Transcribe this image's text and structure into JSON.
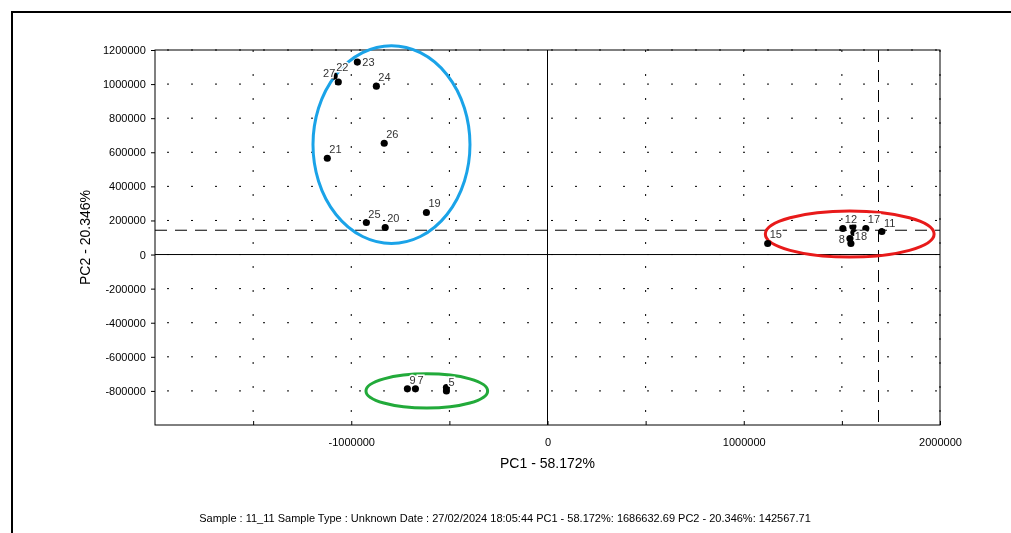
{
  "chart_data": {
    "type": "scatter",
    "xlabel": "PC1 - 58.172%",
    "ylabel": "PC2 - 20.346%",
    "x": [
      -969000,
      -1087000,
      -1066000,
      -872000,
      -832000,
      -1122000,
      -923000,
      -827000,
      -617000,
      -714000,
      -673000,
      -515000,
      -515000,
      1122000,
      1704000,
      1622000,
      1505000,
      1556000,
      1561000,
      1541000,
      1546000
    ],
    "series": [
      {
        "color": "#000000",
        "values": [
          1129000,
          1047000,
          1012000,
          988000,
          653000,
          565000,
          188000,
          159000,
          247000,
          -788000,
          -788000,
          -800000,
          -780000,
          65000,
          135000,
          153000,
          153000,
          165000,
          129000,
          94000,
          65000
        ]
      }
    ],
    "marker": "circle",
    "grid": true,
    "xlim": [
      -2000000,
      2000000
    ],
    "ylim": [
      -1000000,
      1200000
    ],
    "xticks": [
      {
        "value": -1500000,
        "label": null
      },
      -1000000,
      {
        "value": -500000,
        "label": null
      },
      0,
      {
        "value": 500000,
        "label": null
      },
      1000000,
      {
        "value": 1500000,
        "label": null
      },
      2000000
    ],
    "yticks": [
      -800000,
      -600000,
      -400000,
      -200000,
      0,
      200000,
      400000,
      600000,
      800000,
      1000000,
      1200000
    ],
    "ref_lines": [
      {
        "axis": "x",
        "value": 1686632.69,
        "line_style": "dashed"
      },
      {
        "axis": "y",
        "value": 142567.71,
        "line_style": "dashed"
      }
    ],
    "annotations": [
      {
        "text": "23",
        "x": -969000,
        "y": 1129000
      },
      {
        "text": "22",
        "x": -1087000,
        "y": 1047000
      },
      {
        "text": "27",
        "x": -1066000,
        "y": 1012000
      },
      {
        "text": "24",
        "x": -872000,
        "y": 988000
      },
      {
        "text": "26",
        "x": -832000,
        "y": 653000
      },
      {
        "text": "21",
        "x": -1122000,
        "y": 565000
      },
      {
        "text": "25",
        "x": -923000,
        "y": 188000
      },
      {
        "text": "20",
        "x": -827000,
        "y": 159000
      },
      {
        "text": "19",
        "x": -617000,
        "y": 247000
      },
      {
        "text": "9",
        "x": -714000,
        "y": -788000
      },
      {
        "text": "7",
        "x": -673000,
        "y": -788000
      },
      {
        "text": "5",
        "x": -515000,
        "y": -800000
      },
      {
        "text": "15",
        "x": 1122000,
        "y": 65000
      },
      {
        "text": "11",
        "x": 1704000,
        "y": 135000
      },
      {
        "text": "17",
        "x": 1622000,
        "y": 153000
      },
      {
        "text": "12",
        "x": 1505000,
        "y": 153000
      },
      {
        "text": "18",
        "x": 1556000,
        "y": 165000
      },
      {
        "text": "8",
        "x": 1541000,
        "y": 94000
      },
      "Sample : 11_11    Sample Type : Unknown    Date : 27/02/2024 18:05:44    PC1 - 58.172%: 1686632.69    PC2 - 20.346%: 142567.71"
    ]
  }
}
